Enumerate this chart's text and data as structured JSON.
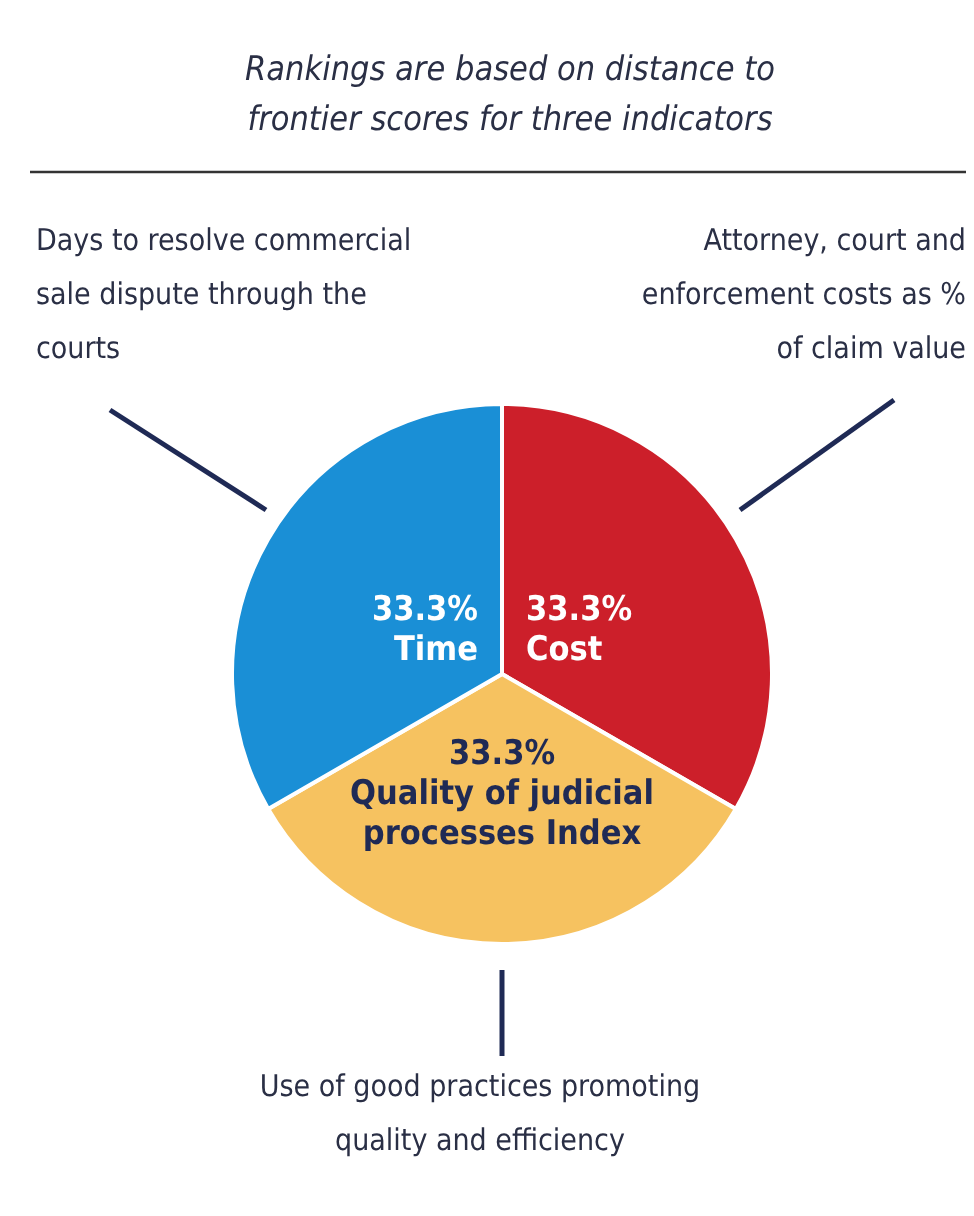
{
  "chart_data": {
    "type": "pie",
    "title": "Rankings are based on distance to frontier scores for three indicators",
    "categories": [
      "Cost",
      "Quality of judicial processes Index",
      "Time"
    ],
    "values": [
      33.3,
      33.3,
      33.3
    ],
    "value_labels": [
      "33.3%",
      "33.3%",
      "33.3%"
    ],
    "colors": [
      "#cc1f2a",
      "#f6c260",
      "#1a8fd6"
    ],
    "annotations": [
      "Attorney, court and enforcement costs as % of claim value",
      "Use of good practices promoting quality and efficiency",
      "Days to resolve commercial sale dispute through the courts"
    ]
  }
}
